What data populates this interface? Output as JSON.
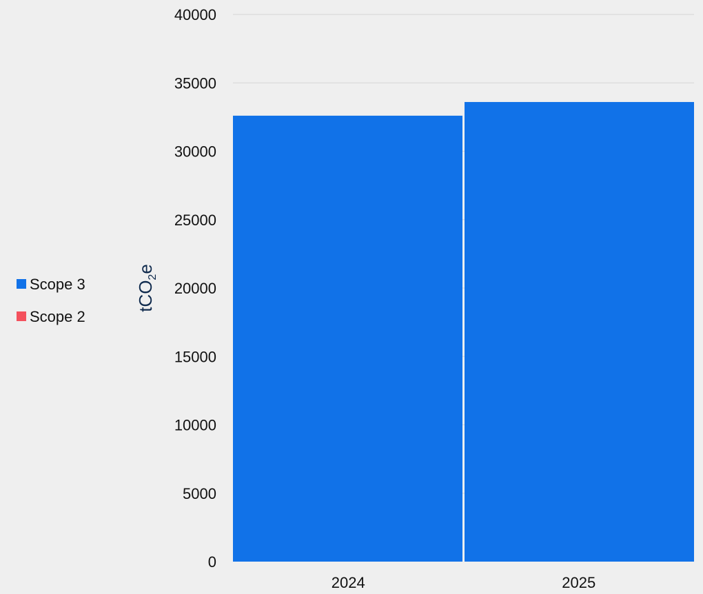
{
  "chart_data": {
    "type": "bar",
    "stacked": true,
    "categories": [
      "2024",
      "2025"
    ],
    "series": [
      {
        "name": "Scope 3",
        "values": [
          32600,
          33600
        ],
        "color": "#1172e8"
      },
      {
        "name": "Scope 2",
        "values": [
          0,
          0
        ],
        "color": "#f4515d"
      }
    ],
    "ylabel": {
      "main": "tCO",
      "sub": "2",
      "suffix": "e"
    },
    "ylim": [
      0,
      40000
    ],
    "yticks": [
      "0",
      "5000",
      "10000",
      "15000",
      "20000",
      "25000",
      "30000",
      "35000",
      "40000"
    ],
    "grid": true,
    "legend_position": "left"
  },
  "colors": {
    "background": "#efefef",
    "gridline": "#d6d6d6",
    "axis_label": "#0f2a4d"
  }
}
